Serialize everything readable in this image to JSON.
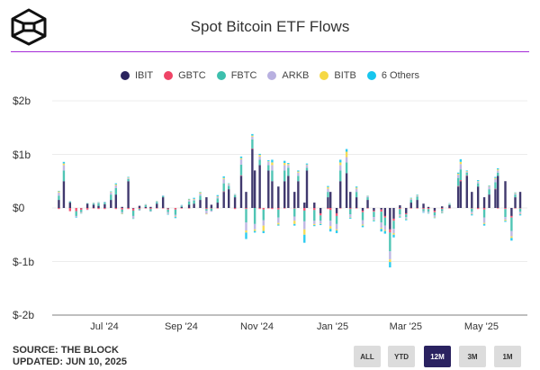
{
  "header": {
    "title": "Spot Bitcoin ETF Flows",
    "logo_icon": "the-block-cube-logo"
  },
  "footer": {
    "source": "SOURCE: THE BLOCK",
    "updated": "UPDATED: JUN 10, 2025"
  },
  "range_buttons": [
    {
      "label": "ALL",
      "active": false
    },
    {
      "label": "YTD",
      "active": false
    },
    {
      "label": "12M",
      "active": true
    },
    {
      "label": "3M",
      "active": false
    },
    {
      "label": "1M",
      "active": false
    }
  ],
  "chart_data": {
    "type": "bar",
    "stacked": true,
    "title": "Spot Bitcoin ETF Flows",
    "unit": "$m",
    "legend_position": "top",
    "grid": true,
    "ylim": [
      -2000,
      2000
    ],
    "y_ticks": [
      {
        "value": 2000,
        "label": "$2b"
      },
      {
        "value": 1000,
        "label": "$1b"
      },
      {
        "value": 0,
        "label": "$0"
      },
      {
        "value": -1000,
        "label": "$-1b"
      },
      {
        "value": -2000,
        "label": "$-2b"
      }
    ],
    "x_ticks": [
      {
        "date": "2024-07-01",
        "label": "Jul '24"
      },
      {
        "date": "2024-09-01",
        "label": "Sep '24"
      },
      {
        "date": "2024-11-01",
        "label": "Nov '24"
      },
      {
        "date": "2025-01-01",
        "label": "Jan '25"
      },
      {
        "date": "2025-03-01",
        "label": "Mar '25"
      },
      {
        "date": "2025-05-01",
        "label": "May '25"
      }
    ],
    "dates": [
      "2024-06-03",
      "2024-06-07",
      "2024-06-12",
      "2024-06-17",
      "2024-06-21",
      "2024-06-26",
      "2024-07-01",
      "2024-07-05",
      "2024-07-10",
      "2024-07-15",
      "2024-07-19",
      "2024-07-24",
      "2024-07-29",
      "2024-08-02",
      "2024-08-07",
      "2024-08-12",
      "2024-08-16",
      "2024-08-21",
      "2024-08-26",
      "2024-08-30",
      "2024-09-05",
      "2024-09-10",
      "2024-09-16",
      "2024-09-20",
      "2024-09-25",
      "2024-09-30",
      "2024-10-04",
      "2024-10-09",
      "2024-10-14",
      "2024-10-18",
      "2024-10-23",
      "2024-10-28",
      "2024-11-01",
      "2024-11-06",
      "2024-11-08",
      "2024-11-12",
      "2024-11-15",
      "2024-11-19",
      "2024-11-22",
      "2024-11-27",
      "2024-12-02",
      "2024-12-05",
      "2024-12-10",
      "2024-12-13",
      "2024-12-18",
      "2024-12-20",
      "2024-12-26",
      "2024-12-31",
      "2025-01-06",
      "2025-01-08",
      "2025-01-13",
      "2025-01-16",
      "2025-01-21",
      "2025-01-24",
      "2025-01-29",
      "2025-02-03",
      "2025-02-07",
      "2025-02-12",
      "2025-02-18",
      "2025-02-21",
      "2025-02-25",
      "2025-02-28",
      "2025-03-05",
      "2025-03-10",
      "2025-03-14",
      "2025-03-19",
      "2025-03-24",
      "2025-03-28",
      "2025-04-02",
      "2025-04-08",
      "2025-04-14",
      "2025-04-21",
      "2025-04-23",
      "2025-04-28",
      "2025-05-02",
      "2025-05-07",
      "2025-05-12",
      "2025-05-16",
      "2025-05-21",
      "2025-05-23",
      "2025-05-29",
      "2025-06-03",
      "2025-06-06",
      "2025-06-10"
    ],
    "series": [
      {
        "name": "IBIT",
        "color": "#2b245e",
        "values": [
          150,
          500,
          100,
          0,
          -5,
          80,
          60,
          40,
          70,
          150,
          250,
          20,
          500,
          -10,
          40,
          20,
          20,
          80,
          200,
          -10,
          0,
          20,
          60,
          80,
          150,
          200,
          60,
          100,
          300,
          350,
          200,
          600,
          300,
          1100,
          700,
          800,
          0,
          700,
          500,
          400,
          500,
          600,
          300,
          500,
          100,
          700,
          100,
          -100,
          200,
          300,
          -100,
          500,
          650,
          300,
          200,
          -50,
          150,
          -50,
          -30,
          -150,
          -400,
          -200,
          50,
          -100,
          100,
          150,
          80,
          20,
          -50,
          30,
          50,
          400,
          500,
          600,
          300,
          400,
          200,
          250,
          350,
          600,
          500,
          -150,
          200,
          300
        ]
      },
      {
        "name": "GBTC",
        "color": "#ef4466",
        "values": [
          -20,
          0,
          -60,
          -60,
          -30,
          -30,
          -10,
          -20,
          -20,
          0,
          -20,
          -30,
          -20,
          -40,
          -20,
          -10,
          -20,
          -10,
          -10,
          -20,
          -30,
          -10,
          -10,
          0,
          0,
          -20,
          -10,
          -10,
          10,
          0,
          -20,
          10,
          -20,
          10,
          0,
          -20,
          -30,
          -10,
          -20,
          -30,
          -10,
          0,
          -10,
          0,
          -50,
          0,
          -40,
          -40,
          -20,
          -40,
          -50,
          -10,
          0,
          -20,
          -10,
          -30,
          -10,
          -20,
          -40,
          -30,
          -60,
          -40,
          -20,
          -20,
          -10,
          -10,
          -20,
          -20,
          -30,
          -20,
          -10,
          10,
          20,
          10,
          -10,
          -20,
          -30,
          0,
          10,
          -10,
          -20,
          -30,
          -10,
          -10
        ]
      },
      {
        "name": "FBTC",
        "color": "#3dbfad",
        "values": [
          80,
          200,
          20,
          -90,
          -40,
          10,
          20,
          50,
          30,
          100,
          120,
          -50,
          40,
          -100,
          -20,
          30,
          -40,
          30,
          20,
          -50,
          -100,
          20,
          60,
          60,
          80,
          -30,
          -40,
          80,
          150,
          60,
          40,
          200,
          -250,
          170,
          -300,
          100,
          -200,
          100,
          200,
          -150,
          200,
          150,
          -150,
          100,
          -200,
          50,
          -200,
          -100,
          100,
          -200,
          -150,
          200,
          200,
          -100,
          100,
          -150,
          50,
          -100,
          -200,
          -150,
          -350,
          -150,
          -100,
          -50,
          50,
          60,
          -40,
          -50,
          -60,
          -40,
          20,
          150,
          200,
          50,
          -60,
          60,
          -150,
          100,
          120,
          60,
          -150,
          -250,
          50,
          -60
        ]
      },
      {
        "name": "ARKB",
        "color": "#b8b0e0",
        "values": [
          60,
          100,
          10,
          -20,
          -20,
          -10,
          10,
          10,
          10,
          40,
          50,
          -20,
          20,
          -40,
          -10,
          10,
          -10,
          10,
          10,
          -30,
          -30,
          10,
          30,
          20,
          40,
          -60,
          -20,
          30,
          80,
          30,
          10,
          100,
          -150,
          50,
          -100,
          60,
          -100,
          60,
          100,
          -100,
          100,
          50,
          -80,
          60,
          -150,
          50,
          -60,
          -50,
          60,
          -100,
          -100,
          100,
          100,
          -50,
          60,
          -80,
          20,
          -50,
          -100,
          -80,
          -150,
          -80,
          -30,
          -30,
          20,
          20,
          -20,
          -20,
          -30,
          -20,
          10,
          60,
          100,
          20,
          -40,
          30,
          -100,
          50,
          60,
          40,
          -50,
          -100,
          20,
          -40
        ]
      },
      {
        "name": "BITB",
        "color": "#f5d845",
        "values": [
          20,
          30,
          0,
          0,
          -5,
          0,
          5,
          5,
          0,
          10,
          20,
          -10,
          10,
          -5,
          0,
          5,
          0,
          5,
          0,
          -5,
          -10,
          0,
          10,
          10,
          20,
          -10,
          0,
          10,
          20,
          10,
          5,
          20,
          -40,
          20,
          -30,
          30,
          -100,
          10,
          50,
          -30,
          40,
          20,
          -60,
          20,
          -100,
          10,
          -20,
          -10,
          30,
          -50,
          -20,
          50,
          100,
          -10,
          20,
          -20,
          5,
          -10,
          -20,
          -20,
          -50,
          -30,
          -10,
          -10,
          10,
          10,
          0,
          -5,
          -10,
          -10,
          5,
          20,
          40,
          10,
          -10,
          10,
          -20,
          10,
          20,
          20,
          -20,
          -30,
          10,
          -10
        ]
      },
      {
        "name": "6 Others",
        "color": "#17c6ee",
        "values": [
          10,
          30,
          0,
          -10,
          -5,
          0,
          5,
          5,
          5,
          10,
          20,
          -5,
          10,
          -10,
          0,
          5,
          0,
          5,
          5,
          -10,
          -20,
          5,
          10,
          20,
          10,
          0,
          0,
          20,
          30,
          10,
          5,
          30,
          -120,
          30,
          -30,
          20,
          -40,
          20,
          50,
          -20,
          40,
          20,
          -30,
          20,
          -150,
          20,
          -20,
          -20,
          20,
          -50,
          -50,
          50,
          50,
          -20,
          20,
          -30,
          5,
          -20,
          -50,
          -50,
          -100,
          -50,
          -20,
          -20,
          10,
          10,
          -10,
          -10,
          -10,
          -10,
          5,
          20,
          50,
          10,
          -20,
          20,
          -30,
          10,
          20,
          20,
          -20,
          -50,
          10,
          -20
        ]
      }
    ]
  }
}
